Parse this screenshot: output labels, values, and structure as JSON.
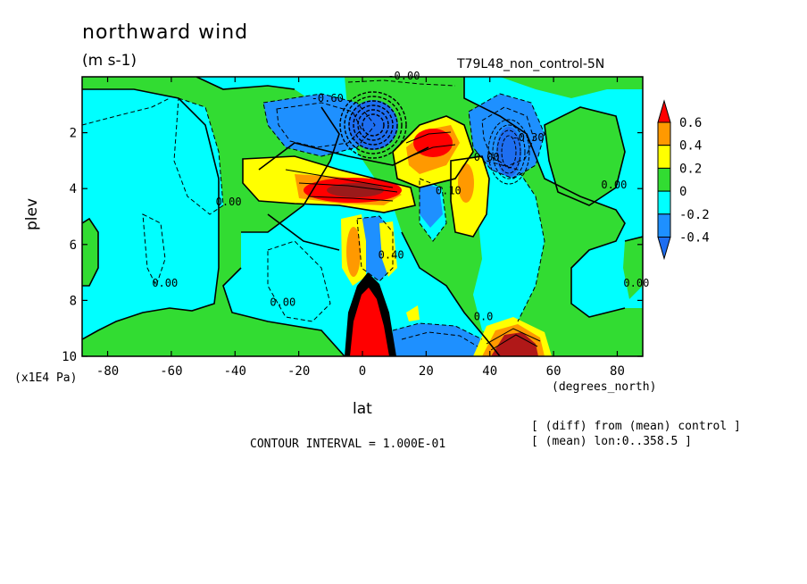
{
  "title": "northward wind",
  "units": "(m s-1)",
  "run_label": "T79L48_non_control-5N",
  "contour_interval": "CONTOUR INTERVAL = 1.000E-01",
  "notes": [
    "[ (diff) from (mean) control ]",
    "[ (mean) lon:0..358.5 ]"
  ],
  "chart_data": {
    "type": "heatmap",
    "xlabel": "lat",
    "xunits": "(degrees_north)",
    "ylabel": "plev",
    "yunits": "(x1E4 Pa)",
    "xlim": [
      -88,
      88
    ],
    "ylim": [
      10,
      0
    ],
    "x_ticks": [
      -80,
      -60,
      -40,
      -20,
      0,
      20,
      40,
      60,
      80
    ],
    "x_tick_labels": [
      "-80",
      "-60",
      "-40",
      "-20",
      "0",
      "20",
      "40",
      "60",
      "80"
    ],
    "y_ticks": [
      2,
      4,
      6,
      8,
      10
    ],
    "y_tick_labels": [
      "2",
      "4",
      "6",
      "8",
      "10"
    ],
    "colorbar": {
      "labels": [
        "0.6",
        "0.4",
        "0.2",
        "0",
        "-0.2",
        "-0.4"
      ],
      "levels": [
        -0.4,
        -0.2,
        0,
        0.2,
        0.4,
        0.6
      ],
      "colors": {
        "below_-0.4": "#1e6ef0",
        "-0.4_to_-0.2": "#1e90ff",
        "-0.2_to_0": "#00ffff",
        "0_to_0.2": "#32dc32",
        "0.2_to_0.4": "#ffff00",
        "0.4_to_0.6": "#ff9900",
        "above_0.6": "#ff0000"
      }
    },
    "contour_labels": [
      {
        "text": "-0.00",
        "lat": 13,
        "plev": 0.1
      },
      {
        "text": "-0.60",
        "lat": -11,
        "plev": 0.9
      },
      {
        "text": "0.00",
        "lat": -42,
        "plev": 4.6
      },
      {
        "text": "0.00",
        "lat": -62,
        "plev": 7.5
      },
      {
        "text": "0.00",
        "lat": -25,
        "plev": 8.2
      },
      {
        "text": "0.40",
        "lat": 9,
        "plev": 6.5
      },
      {
        "text": "0.10",
        "lat": 27,
        "plev": 4.2
      },
      {
        "text": "0.00",
        "lat": 39,
        "plev": 3.0
      },
      {
        "text": "-0.30",
        "lat": 52,
        "plev": 2.3
      },
      {
        "text": "0.00",
        "lat": 79,
        "plev": 4.0
      },
      {
        "text": "0.00",
        "lat": 86,
        "plev": 7.5
      },
      {
        "text": "0.0",
        "lat": 38,
        "plev": 8.7
      }
    ],
    "features": [
      {
        "value": -0.8,
        "lat": 3,
        "plev": 1.8,
        "desc": "strong negative core"
      },
      {
        "value": -0.5,
        "lat": -12,
        "plev": 1.7
      },
      {
        "value": -0.5,
        "lat": 44,
        "plev": 2.0
      },
      {
        "value": 0.6,
        "lat": 21,
        "plev": 2.5
      },
      {
        "value": 0.7,
        "lat": 0,
        "plev": 4.1
      },
      {
        "value": 0.3,
        "lat": -24,
        "plev": 4.0
      },
      {
        "value": 0.3,
        "lat": 33,
        "plev": 4.2
      },
      {
        "value": -0.3,
        "lat": 25,
        "plev": 4.5
      },
      {
        "value": 0.4,
        "lat": -3,
        "plev": 6.3
      },
      {
        "value": -0.4,
        "lat": 9,
        "plev": 6.4
      },
      {
        "value": 1.2,
        "lat": 2,
        "plev": 9.2
      },
      {
        "value": -0.5,
        "lat": 25,
        "plev": 9.4
      },
      {
        "value": 0.8,
        "lat": 47,
        "plev": 9.5
      },
      {
        "value": -0.1,
        "lat": -65,
        "plev": 7.5
      },
      {
        "value": -0.1,
        "lat": -45,
        "plev": 9.5
      },
      {
        "value": -0.1,
        "lat": 72,
        "plev": 9.0
      }
    ]
  }
}
